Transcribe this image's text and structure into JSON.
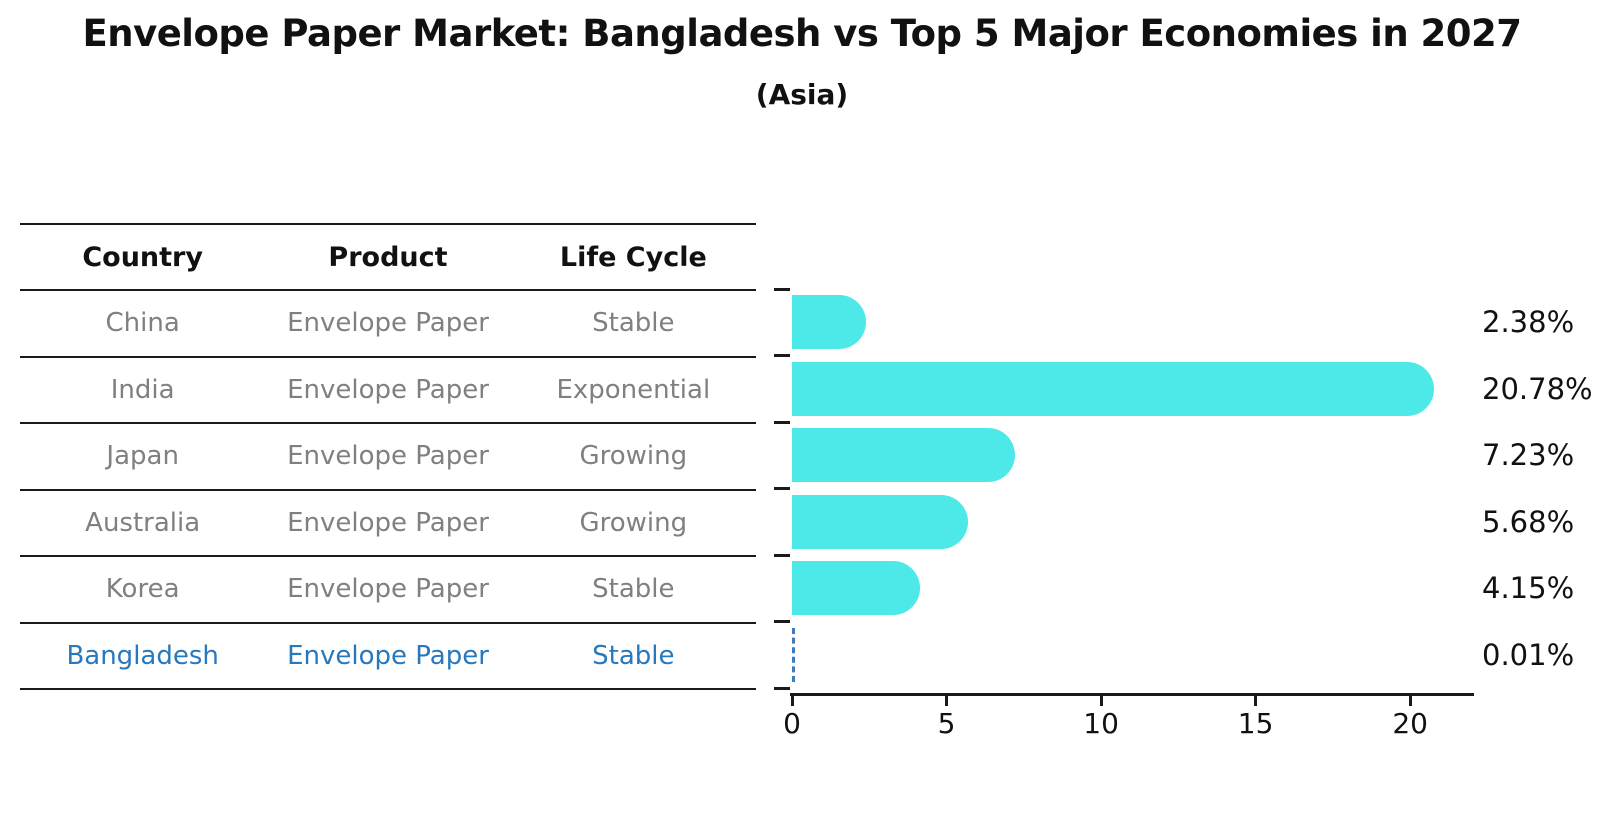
{
  "title": "Envelope Paper Market: Bangladesh vs Top 5 Major Economies in 2027",
  "subtitle": "(Asia)",
  "table": {
    "headers": [
      "Country",
      "Product",
      "Life Cycle"
    ],
    "rows": [
      {
        "country": "China",
        "product": "Envelope Paper",
        "life_cycle": "Stable"
      },
      {
        "country": "India",
        "product": "Envelope Paper",
        "life_cycle": "Exponential"
      },
      {
        "country": "Japan",
        "product": "Envelope Paper",
        "life_cycle": "Growing"
      },
      {
        "country": "Australia",
        "product": "Envelope Paper",
        "life_cycle": "Growing"
      },
      {
        "country": "Korea",
        "product": "Envelope Paper",
        "life_cycle": "Stable"
      },
      {
        "country": "Bangladesh",
        "product": "Envelope Paper",
        "life_cycle": "Stable"
      }
    ],
    "highlighted_country": "Bangladesh"
  },
  "chart_data": {
    "type": "bar",
    "orientation": "horizontal",
    "title": "Envelope Paper Market: Bangladesh vs Top 5 Major Economies in 2027",
    "subtitle": "(Asia)",
    "categories": [
      "China",
      "India",
      "Japan",
      "Australia",
      "Korea",
      "Bangladesh"
    ],
    "values": [
      2.38,
      20.78,
      7.23,
      5.68,
      4.15,
      0.01
    ],
    "value_labels": [
      "2.38%",
      "20.78%",
      "7.23%",
      "5.68%",
      "4.15%",
      "0.01%"
    ],
    "xlabel": "",
    "ylabel": "",
    "xlim": [
      0,
      22
    ],
    "x_ticks": [
      0,
      5,
      10,
      15,
      20
    ],
    "x_tick_labels": [
      "0",
      "5",
      "10",
      "15",
      "20"
    ],
    "grid": false,
    "legend": false,
    "highlight_index": 5,
    "highlight_style": "dashed-outline-bar"
  },
  "colors": {
    "background": "#ffffff",
    "bar_fill": "#4DE8E8",
    "highlight_text": "#2878BE",
    "highlight_dash": "#3A7CBE",
    "table_text": "#808080",
    "heading_text": "#111111",
    "axis": "#1a1a1a"
  }
}
